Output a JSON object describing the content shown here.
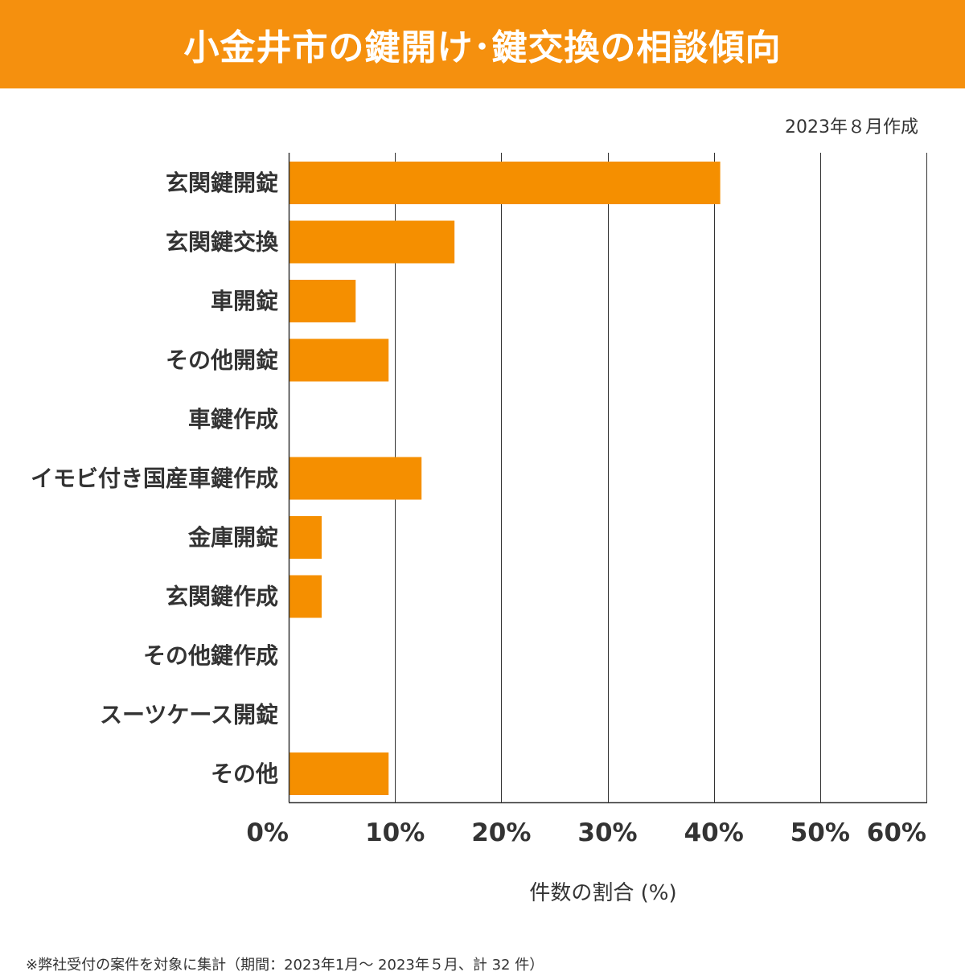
{
  "header": {
    "title": "小金井市の鍵開け･鍵交換の相談傾向"
  },
  "meta": {
    "date": "2023年８月作成"
  },
  "footnote": "※弊社受付の案件を対象に集計（期間：2023年1月～ 2023年５月、計 32 件）",
  "colors": {
    "bar": "#f58f00",
    "banner": "#f5900e",
    "text": "#333333",
    "grid": "#333333"
  },
  "chart_data": {
    "type": "bar",
    "orientation": "horizontal",
    "title": "小金井市の鍵開け･鍵交換の相談傾向",
    "xlabel": "件数の割合 (%)",
    "ylabel": "",
    "xlim": [
      0,
      60
    ],
    "xticks": [
      0,
      10,
      20,
      30,
      40,
      50,
      60
    ],
    "tick_labels": [
      "0%",
      "10%",
      "20%",
      "30%",
      "40%",
      "50%",
      "60%"
    ],
    "grid": true,
    "categories": [
      "玄関鍵開錠",
      "玄関鍵交換",
      "車開錠",
      "その他開錠",
      "車鍵作成",
      "イモビ付き国産車鍵作成",
      "金庫開錠",
      "玄関鍵作成",
      "その他鍵作成",
      "スーツケース開錠",
      "その他"
    ],
    "values": [
      40.6,
      15.6,
      6.3,
      9.4,
      0,
      12.5,
      3.1,
      3.1,
      0,
      0,
      9.4
    ]
  }
}
